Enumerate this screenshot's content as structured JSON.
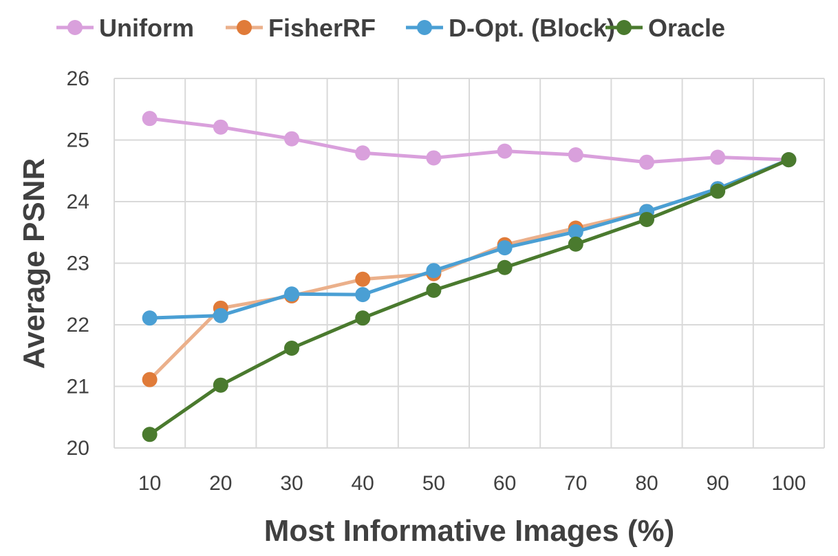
{
  "chart_data": {
    "type": "line",
    "title": "",
    "xlabel": "Most Informative Images (%)",
    "ylabel": "Average PSNR",
    "x": [
      10,
      20,
      30,
      40,
      50,
      60,
      70,
      80,
      90,
      100
    ],
    "x_tick_labels": [
      "10",
      "20",
      "30",
      "40",
      "50",
      "60",
      "70",
      "80",
      "90",
      "100"
    ],
    "y_tick_labels": [
      "20",
      "21",
      "22",
      "23",
      "24",
      "25",
      "26"
    ],
    "ylim": [
      20,
      26
    ],
    "grid": true,
    "legend_position": "top",
    "series": [
      {
        "name": "Uniform",
        "line_color": "#D9A0DC",
        "marker_color": "#D9A0DC",
        "values": [
          25.35,
          25.21,
          25.02,
          24.79,
          24.71,
          24.82,
          24.76,
          24.64,
          24.72,
          24.68
        ]
      },
      {
        "name": "FisherRF",
        "line_color": "#EBB08B",
        "marker_color": "#E07B39",
        "values": [
          21.11,
          22.27,
          22.47,
          22.74,
          22.83,
          23.3,
          23.57,
          23.84,
          24.21,
          24.68
        ]
      },
      {
        "name": "D-Opt. (Block)",
        "line_color": "#4A9FD4",
        "marker_color": "#4A9FD4",
        "values": [
          22.11,
          22.15,
          22.5,
          22.49,
          22.88,
          23.25,
          23.51,
          23.84,
          24.21,
          24.68
        ]
      },
      {
        "name": "Oracle",
        "line_color": "#4A7A2E",
        "marker_color": "#4A7A2E",
        "values": [
          20.22,
          21.02,
          21.62,
          22.11,
          22.56,
          22.93,
          23.31,
          23.71,
          24.17,
          24.68
        ]
      }
    ]
  }
}
